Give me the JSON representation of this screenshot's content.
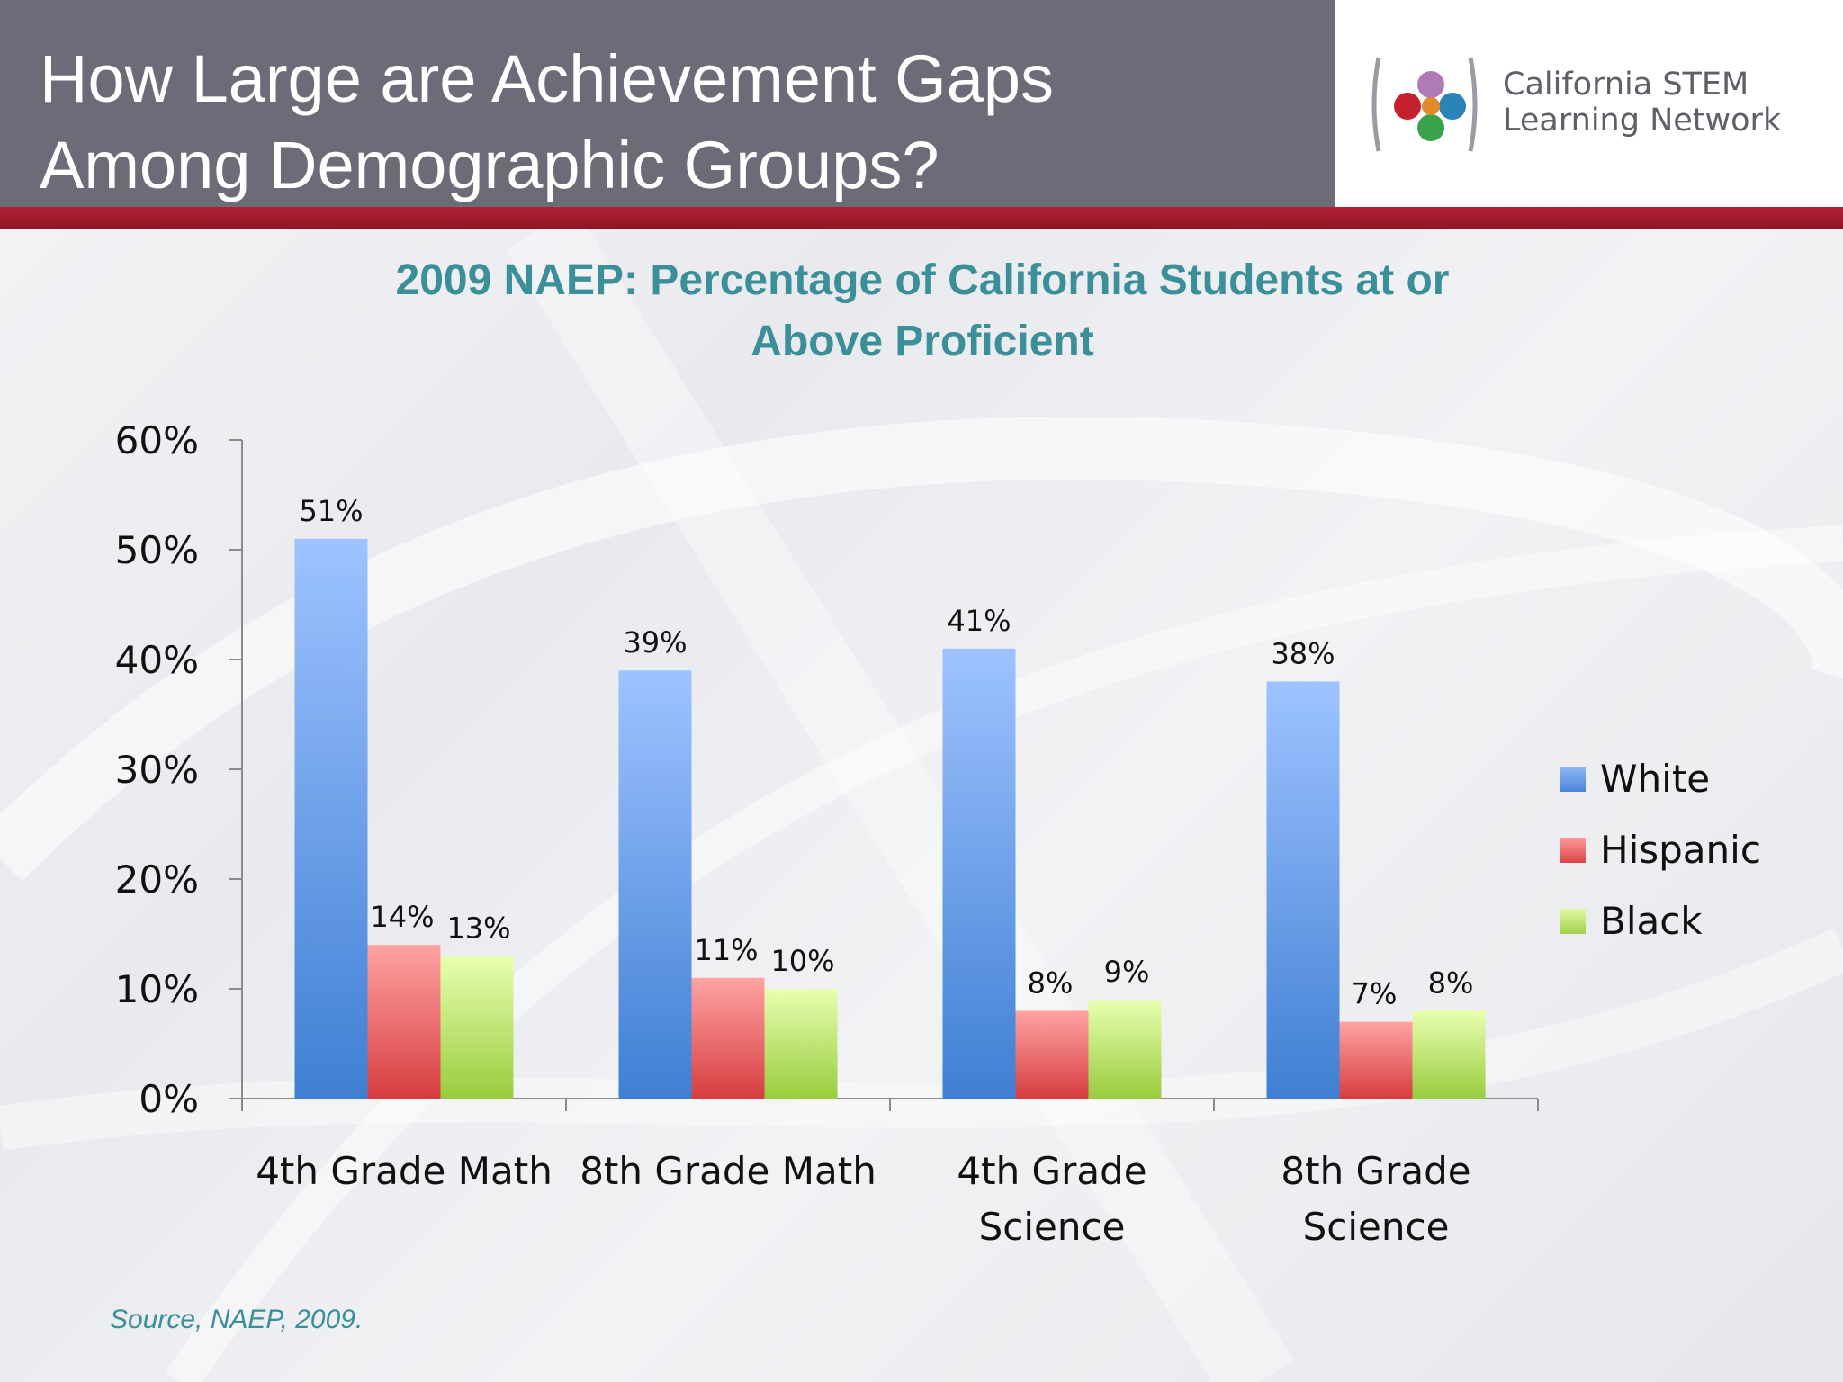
{
  "header": {
    "title_line1": "How Large are Achievement Gaps",
    "title_line2": "Among Demographic Groups?"
  },
  "logo": {
    "line1": "California STEM",
    "line2": "Learning Network"
  },
  "source": "Source, NAEP, 2009.",
  "colors": {
    "header_bg": "#6b6c78",
    "accent_red": "#a01b2e",
    "title_teal": "#3a8f98",
    "white_series": "#6f9ee8",
    "hispanic_series": "#e5585a",
    "black_series": "#b6e060"
  },
  "chart_data": {
    "type": "bar",
    "title_line1": "2009 NAEP: Percentage of California Students at or",
    "title_line2": "Above Proficient",
    "categories": [
      [
        "4th Grade Math"
      ],
      [
        "8th Grade Math"
      ],
      [
        "4th Grade",
        "Science"
      ],
      [
        "8th Grade",
        "Science"
      ]
    ],
    "series": [
      {
        "name": "White",
        "values": [
          51,
          39,
          41,
          38
        ],
        "labels": [
          "51%",
          "39%",
          "41%",
          "38%"
        ]
      },
      {
        "name": "Hispanic",
        "values": [
          14,
          11,
          8,
          7
        ],
        "labels": [
          "14%",
          "11%",
          "8%",
          "7%"
        ]
      },
      {
        "name": "Black",
        "values": [
          13,
          10,
          9,
          8
        ],
        "labels": [
          "13%",
          "10%",
          "9%",
          "8%"
        ]
      }
    ],
    "y_ticks": [
      "0%",
      "10%",
      "20%",
      "30%",
      "40%",
      "50%",
      "60%"
    ],
    "ylim": [
      0,
      60
    ],
    "legend_position": "right",
    "grid": false
  }
}
